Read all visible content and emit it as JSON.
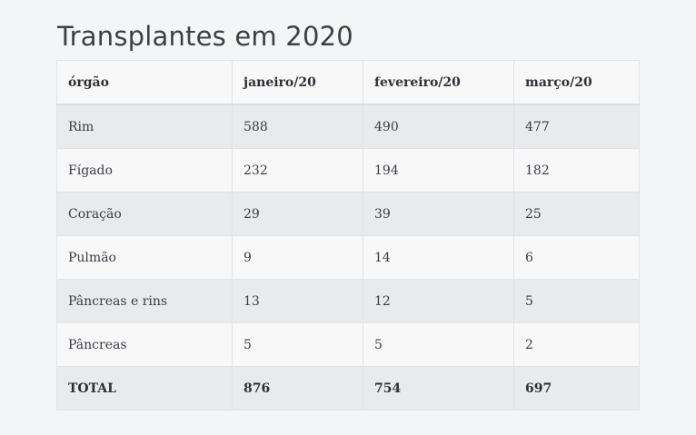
{
  "title": "Transplantes em 2020",
  "table": {
    "headers": [
      "órgão",
      "janeiro/20",
      "fevereiro/20",
      "março/20"
    ],
    "rows": [
      [
        "Rim",
        "588",
        "490",
        "477"
      ],
      [
        "Fígado",
        "232",
        "194",
        "182"
      ],
      [
        "Coração",
        "29",
        "39",
        "25"
      ],
      [
        "Pulmão",
        "9",
        "14",
        "6"
      ],
      [
        "Pâncreas e rins",
        "13",
        "12",
        "5"
      ],
      [
        "Pâncreas",
        "5",
        "5",
        "2"
      ]
    ],
    "total": [
      "TOTAL",
      "876",
      "754",
      "697"
    ]
  }
}
